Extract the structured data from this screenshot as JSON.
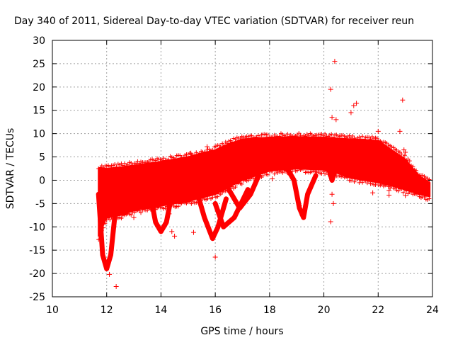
{
  "chart_data": {
    "type": "scatter",
    "title": "Day 340 of 2011, Sidereal Day-to-day VTEC variation (SDTVAR) for receiver reun",
    "xlabel": "GPS time / hours",
    "ylabel": "SDTVAR / TECUs",
    "xlim": [
      10,
      24
    ],
    "ylim": [
      -25,
      30
    ],
    "xticks": [
      10,
      12,
      14,
      16,
      18,
      20,
      22,
      24
    ],
    "yticks": [
      -25,
      -20,
      -15,
      -10,
      -5,
      0,
      5,
      10,
      15,
      20,
      25,
      30
    ],
    "grid": true,
    "series_color": "#ff0000",
    "band": {
      "x": [
        11.7,
        12.0,
        12.5,
        13.0,
        14.0,
        15.0,
        16.0,
        16.5,
        17.0,
        18.0,
        19.0,
        20.0,
        20.5,
        21.0,
        22.0,
        22.5,
        23.0,
        23.5,
        23.9
      ],
      "upper": [
        2.5,
        2.5,
        2.8,
        3.2,
        4.0,
        5.0,
        6.5,
        7.8,
        8.8,
        9.2,
        9.3,
        9.2,
        9.0,
        8.8,
        8.5,
        6.5,
        4.5,
        1.0,
        -0.5
      ],
      "lower": [
        -12.0,
        -8.0,
        -7.5,
        -6.5,
        -5.5,
        -4.5,
        -3.0,
        -1.5,
        0.0,
        2.0,
        2.5,
        2.2,
        1.5,
        0.5,
        -0.5,
        -1.2,
        -2.0,
        -3.0,
        -3.5
      ]
    },
    "dips": [
      {
        "x": [
          11.7,
          11.85,
          12.0,
          12.15,
          12.35
        ],
        "y": [
          -3.0,
          -16.0,
          -19.0,
          -16.0,
          -5.0
        ]
      },
      {
        "x": [
          13.6,
          13.8,
          14.0,
          14.2,
          14.4
        ],
        "y": [
          -3.0,
          -9.0,
          -11.0,
          -9.0,
          -3.0
        ]
      },
      {
        "x": [
          15.3,
          15.6,
          15.9,
          16.1,
          16.4
        ],
        "y": [
          -2.0,
          -8.0,
          -12.5,
          -10.0,
          -4.0
        ]
      },
      {
        "x": [
          16.0,
          16.3,
          16.7,
          17.2
        ],
        "y": [
          -5.0,
          -10.0,
          -8.0,
          -2.0
        ]
      },
      {
        "x": [
          16.5,
          16.9,
          17.3,
          17.6
        ],
        "y": [
          -2.0,
          -6.0,
          -3.0,
          1.0
        ]
      },
      {
        "x": [
          18.7,
          18.9,
          19.1,
          19.25,
          19.4,
          19.7
        ],
        "y": [
          2.0,
          0.0,
          -6.0,
          -8.0,
          -3.0,
          1.0
        ]
      },
      {
        "x": [
          20.2,
          20.3,
          20.4,
          20.6
        ],
        "y": [
          2.0,
          0.0,
          2.0,
          5.0
        ]
      }
    ],
    "outliers": [
      {
        "x": 12.35,
        "y": -22.8
      },
      {
        "x": 12.1,
        "y": -20.2
      },
      {
        "x": 16.0,
        "y": -16.5
      },
      {
        "x": 14.4,
        "y": -11.0
      },
      {
        "x": 14.5,
        "y": -12.0
      },
      {
        "x": 15.2,
        "y": -11.2
      },
      {
        "x": 14.3,
        "y": -7.2
      },
      {
        "x": 15.1,
        "y": 5.8
      },
      {
        "x": 15.7,
        "y": 7.2
      },
      {
        "x": 18.1,
        "y": 0.3
      },
      {
        "x": 20.25,
        "y": 19.5
      },
      {
        "x": 20.4,
        "y": 25.5
      },
      {
        "x": 20.3,
        "y": 13.5
      },
      {
        "x": 20.45,
        "y": 13.0
      },
      {
        "x": 21.1,
        "y": 16.0
      },
      {
        "x": 21.2,
        "y": 16.5
      },
      {
        "x": 21.0,
        "y": 14.5
      },
      {
        "x": 22.9,
        "y": 17.2
      },
      {
        "x": 22.0,
        "y": 10.5
      },
      {
        "x": 22.8,
        "y": 10.5
      },
      {
        "x": 20.3,
        "y": -3.0
      },
      {
        "x": 20.35,
        "y": -5.0
      },
      {
        "x": 20.25,
        "y": -8.9
      },
      {
        "x": 21.8,
        "y": -2.7
      },
      {
        "x": 22.4,
        "y": -2.2
      },
      {
        "x": 22.4,
        "y": -3.2
      },
      {
        "x": 23.0,
        "y": -3.3
      },
      {
        "x": 22.95,
        "y": 6.5
      },
      {
        "x": 23.0,
        "y": 6.0
      },
      {
        "x": 19.2,
        "y": -7.5
      },
      {
        "x": 19.15,
        "y": -6.3
      },
      {
        "x": 19.1,
        "y": -5.5
      },
      {
        "x": 13.0,
        "y": -8.0
      },
      {
        "x": 12.8,
        "y": -6.5
      }
    ]
  }
}
